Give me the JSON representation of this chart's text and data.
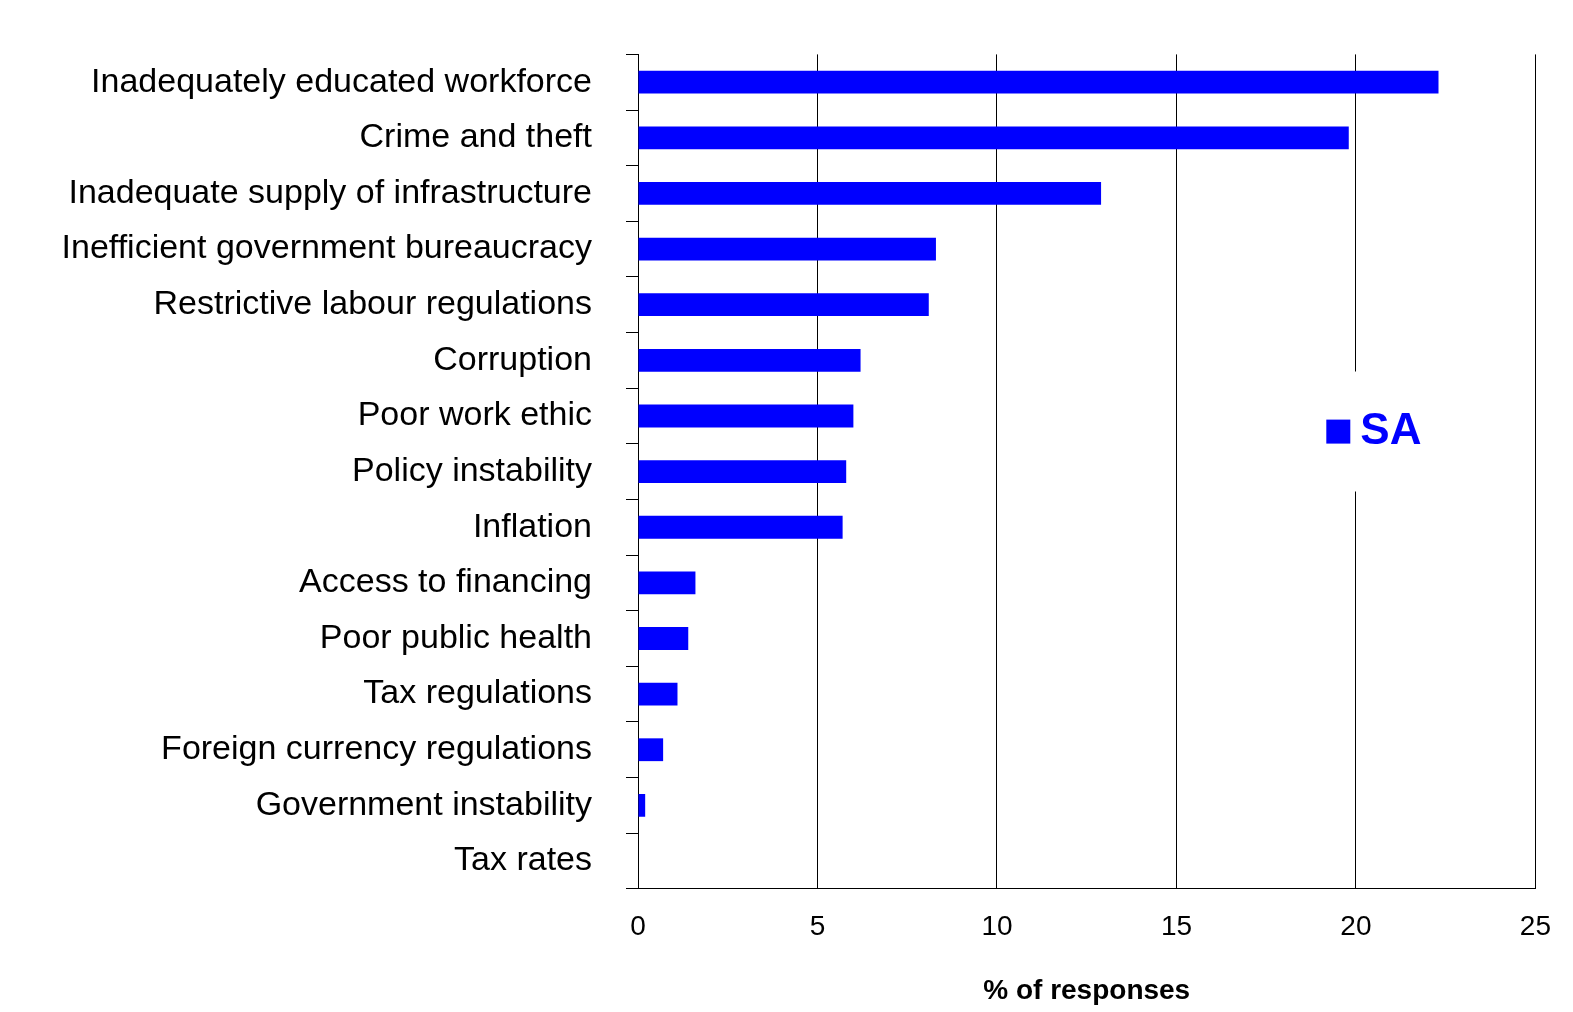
{
  "chart_data": {
    "type": "bar",
    "orientation": "horizontal",
    "xlabel": "% of responses",
    "categories": [
      "Inadequately educated workforce",
      "Crime and theft",
      "Inadequate supply of infrastructure",
      "Inefficient government bureaucracy",
      "Restrictive labour regulations",
      "Corruption",
      "Poor work ethic",
      "Policy instability",
      "Inflation",
      "Access to financing",
      "Poor public health",
      "Tax regulations",
      "Foreign currency regulations",
      "Government instability",
      "Tax rates"
    ],
    "series": [
      {
        "name": "SA",
        "color": "#0000ff",
        "values": [
          22.3,
          19.8,
          12.9,
          8.3,
          8.1,
          6.2,
          6.0,
          5.8,
          5.7,
          1.6,
          1.4,
          1.1,
          0.7,
          0.2,
          0
        ]
      }
    ],
    "xlim": [
      0,
      25
    ],
    "xticks": [
      0,
      5,
      10,
      15,
      20,
      25
    ],
    "grid": "x",
    "legend": "right"
  }
}
